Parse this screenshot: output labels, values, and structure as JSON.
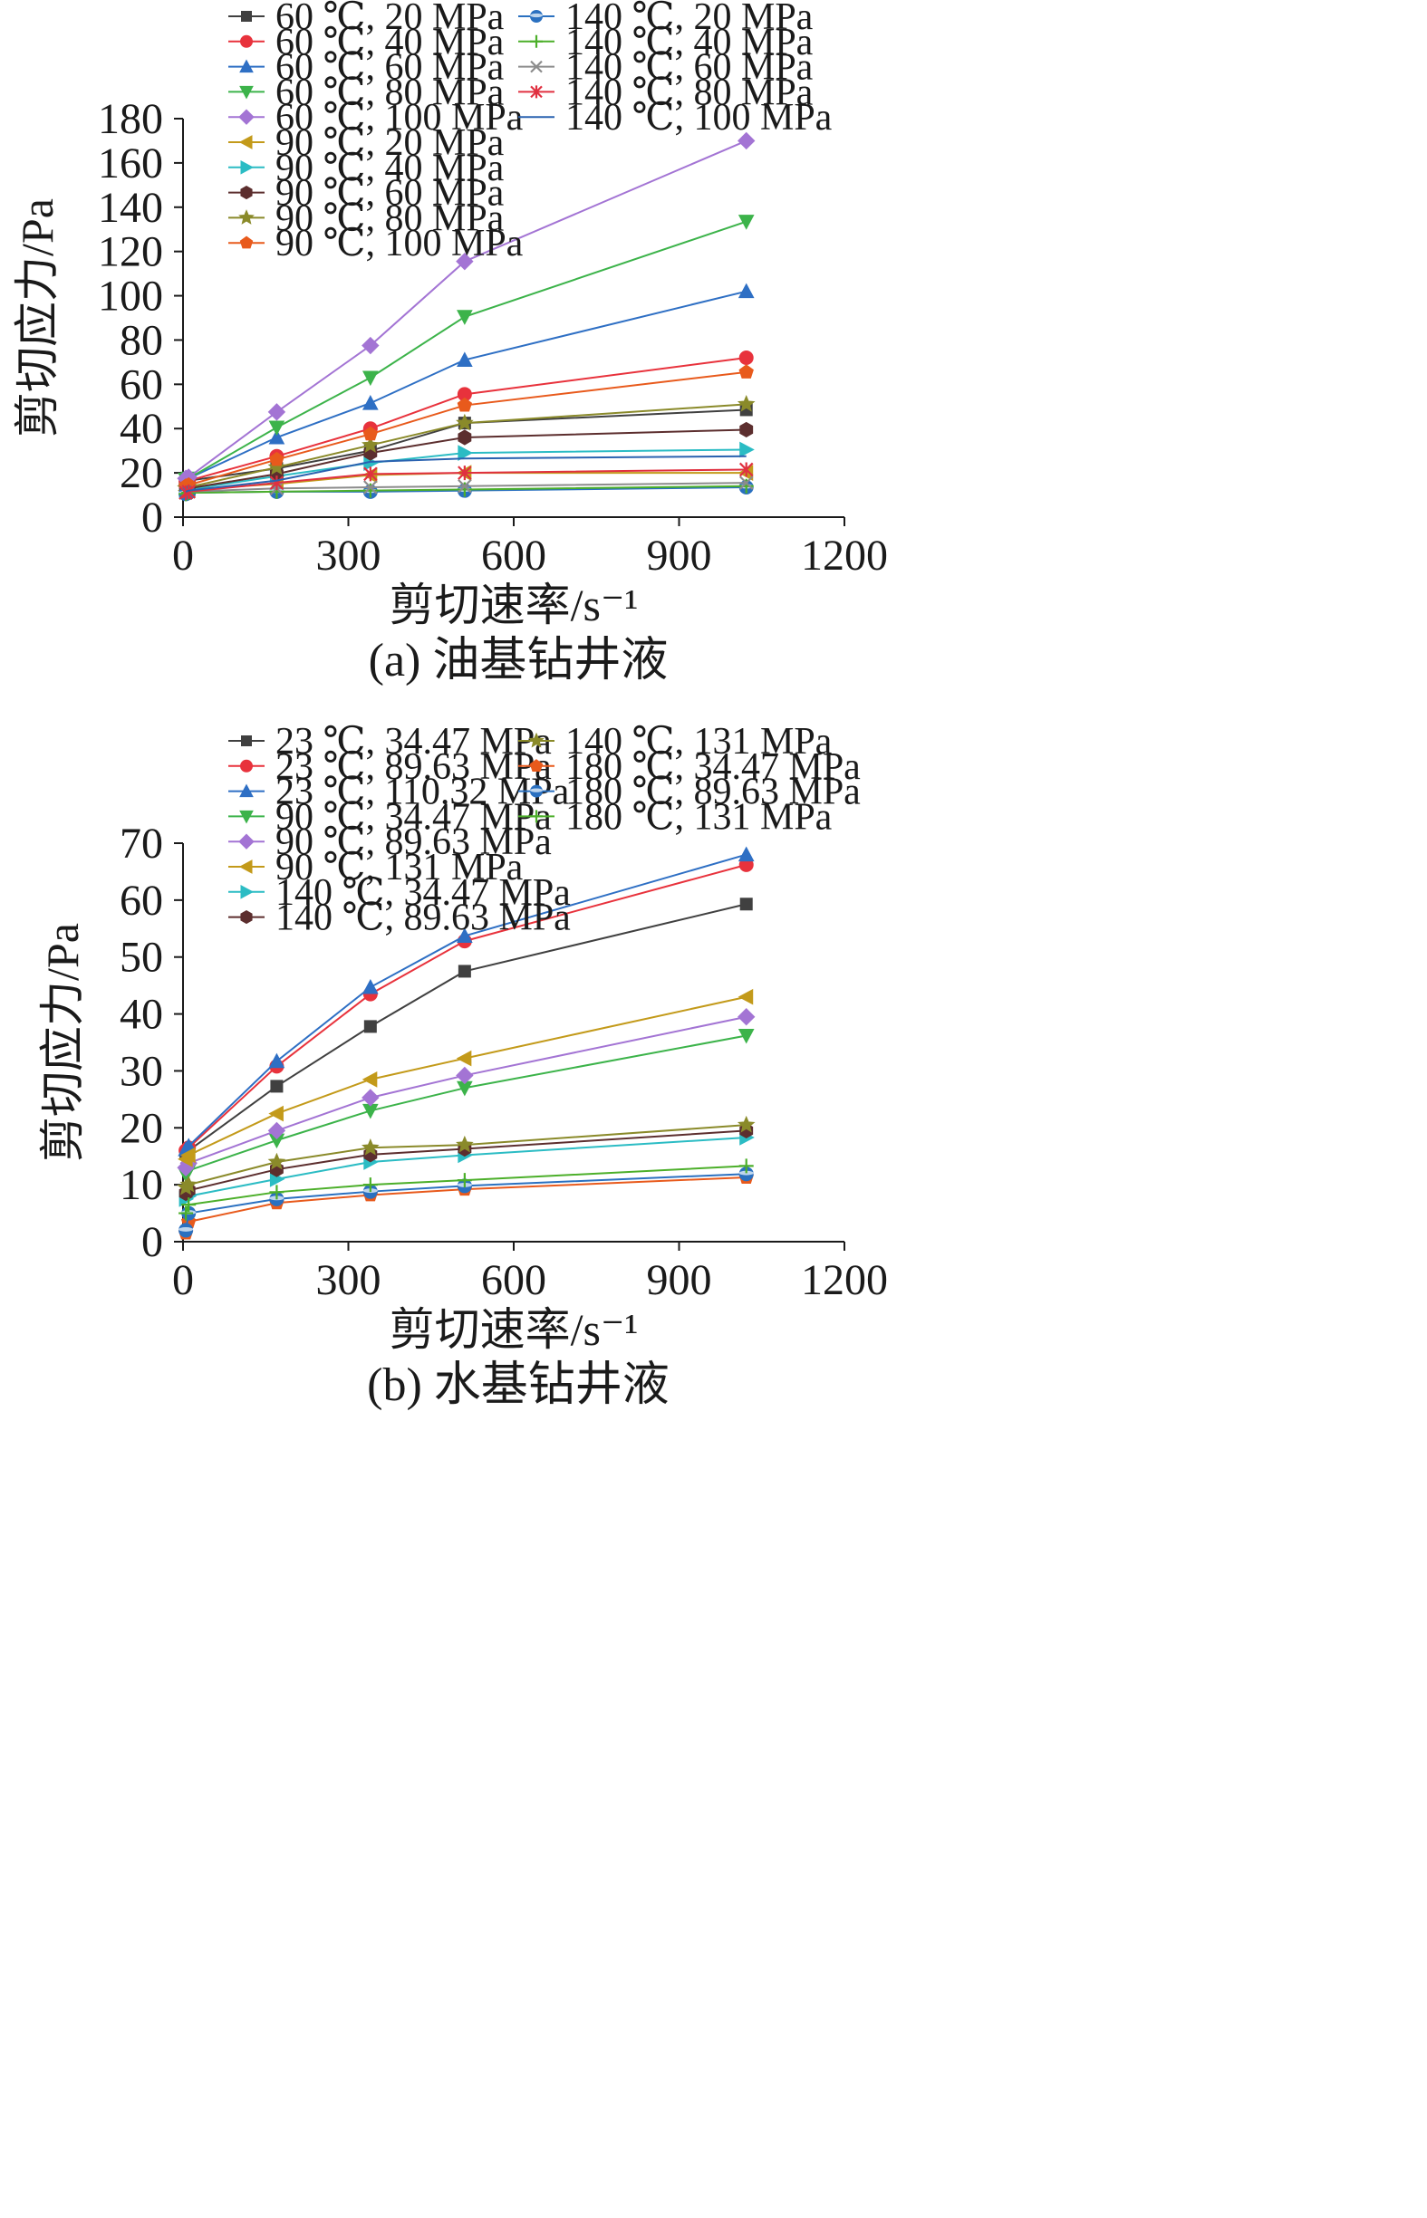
{
  "chart_data": [
    {
      "type": "line",
      "caption": "(a) 油基钻井液",
      "xlabel": "剪切速率/s⁻¹",
      "ylabel": "剪切应力/Pa",
      "xlim": [
        0,
        1200
      ],
      "ylim": [
        0,
        180
      ],
      "xticks": [
        0,
        300,
        600,
        900,
        1200
      ],
      "yticks": [
        0,
        20,
        40,
        60,
        80,
        100,
        120,
        140,
        160,
        180
      ],
      "grid": false,
      "legend_position": "top, two columns",
      "x": [
        5.1,
        10.2,
        170,
        340,
        511,
        1022
      ],
      "series": [
        {
          "name": "60 ℃, 20 MPa",
          "color": "#404040",
          "marker": "square",
          "values": [
            16,
            16.5,
            22,
            30,
            42.5,
            48.5
          ]
        },
        {
          "name": "60 ℃, 40 MPa",
          "color": "#e8323c",
          "marker": "circle",
          "values": [
            16,
            16.5,
            27.5,
            40,
            55.5,
            72
          ]
        },
        {
          "name": "60 ℃, 60 MPa",
          "color": "#2e6fc4",
          "marker": "triangle-up",
          "values": [
            17,
            17.5,
            36,
            51.5,
            71,
            102
          ]
        },
        {
          "name": "60 ℃, 80 MPa",
          "color": "#3cb34a",
          "marker": "triangle-down",
          "values": [
            17,
            17.5,
            40.5,
            63,
            90.5,
            133.5
          ]
        },
        {
          "name": "60 ℃, 100 MPa",
          "color": "#a374d4",
          "marker": "diamond",
          "values": [
            17.5,
            18,
            47.5,
            77.5,
            115.5,
            170
          ]
        },
        {
          "name": "90 ℃, 20 MPa",
          "color": "#c39a1a",
          "marker": "triangle-left",
          "values": [
            12,
            12.5,
            15,
            19,
            20,
            20
          ]
        },
        {
          "name": "90 ℃, 40 MPa",
          "color": "#2bbcc4",
          "marker": "triangle-right",
          "values": [
            12,
            12.5,
            18.5,
            24.5,
            29,
            30.5
          ]
        },
        {
          "name": "90 ℃, 60 MPa",
          "color": "#5c2e2e",
          "marker": "hexagon",
          "values": [
            12.5,
            13,
            19.5,
            29,
            36,
            39.5
          ]
        },
        {
          "name": "90 ℃, 80 MPa",
          "color": "#8a8a2a",
          "marker": "star",
          "values": [
            13,
            13.5,
            22.5,
            32.5,
            42.5,
            51
          ]
        },
        {
          "name": "90 ℃, 100 MPa",
          "color": "#e85a1c",
          "marker": "pentagon",
          "values": [
            14,
            14.5,
            26,
            37.5,
            50.5,
            65.5
          ]
        },
        {
          "name": "140 ℃, 20 MPa",
          "color": "#2a70c0",
          "marker": "ball",
          "values": [
            10.5,
            11,
            11.5,
            11.5,
            12,
            13.5
          ]
        },
        {
          "name": "140 ℃, 40 MPa",
          "color": "#4caf2a",
          "marker": "plus",
          "values": [
            10.5,
            11,
            11.5,
            12,
            12.5,
            14
          ]
        },
        {
          "name": "140 ℃, 60 MPa",
          "color": "#8c8c8c",
          "marker": "x",
          "values": [
            11,
            11.5,
            13,
            13.5,
            14,
            15.5
          ]
        },
        {
          "name": "140 ℃, 80 MPa",
          "color": "#e03040",
          "marker": "asterisk",
          "values": [
            11,
            11.5,
            15.5,
            19.5,
            20,
            21.5
          ]
        },
        {
          "name": "140 ℃, 100 MPa",
          "color": "#2a62b0",
          "marker": "none",
          "values": [
            11.5,
            12,
            16.5,
            25,
            26.5,
            27.5
          ]
        }
      ]
    },
    {
      "type": "line",
      "caption": "(b) 水基钻井液",
      "xlabel": "剪切速率/s⁻¹",
      "ylabel": "剪切应力/Pa",
      "xlim": [
        0,
        1200
      ],
      "ylim": [
        0,
        70
      ],
      "xticks": [
        0,
        300,
        600,
        900,
        1200
      ],
      "yticks": [
        0,
        10,
        20,
        30,
        40,
        50,
        60,
        70
      ],
      "grid": false,
      "legend_position": "top, two columns",
      "x": [
        5.1,
        10.2,
        170,
        340,
        511,
        1022
      ],
      "series": [
        {
          "name": "23 ℃, 34.47 MPa",
          "color": "#404040",
          "marker": "square",
          "values": [
            15.5,
            16,
            27.3,
            37.8,
            47.5,
            59.3
          ]
        },
        {
          "name": "23 ℃, 89.63 MPa",
          "color": "#e8323c",
          "marker": "circle",
          "values": [
            16,
            16.5,
            30.8,
            43.5,
            52.8,
            66.2
          ]
        },
        {
          "name": "23 ℃, 110.32 MPa",
          "color": "#2e6fc4",
          "marker": "triangle-up",
          "values": [
            16.2,
            16.8,
            31.7,
            44.7,
            53.7,
            68
          ]
        },
        {
          "name": "90 ℃, 34.47 MPa",
          "color": "#3cb34a",
          "marker": "triangle-down",
          "values": [
            11.8,
            12.5,
            17.8,
            23,
            27,
            36.2
          ]
        },
        {
          "name": "90 ℃, 89.63 MPa",
          "color": "#a374d4",
          "marker": "diamond",
          "values": [
            13,
            13.8,
            19.5,
            25.3,
            29.2,
            39.5
          ]
        },
        {
          "name": "90 ℃, 131 MPa",
          "color": "#c39a1a",
          "marker": "triangle-left",
          "values": [
            14.5,
            15.2,
            22.5,
            28.5,
            32.2,
            43
          ]
        },
        {
          "name": "140 ℃, 34.47 MPa",
          "color": "#2bbcc4",
          "marker": "triangle-right",
          "values": [
            7.5,
            8,
            11,
            14,
            15.2,
            18.3
          ]
        },
        {
          "name": "140 ℃, 89.63 MPa",
          "color": "#5c2e2e",
          "marker": "hexagon",
          "values": [
            8.5,
            9,
            12.7,
            15.3,
            16.3,
            19.5
          ]
        },
        {
          "name": "140 ℃, 131 MPa",
          "color": "#8a8a2a",
          "marker": "star",
          "values": [
            9.5,
            10,
            14,
            16.5,
            17,
            20.5
          ]
        },
        {
          "name": "180 ℃, 34.47 MPa",
          "color": "#e85a1c",
          "marker": "pentagon",
          "values": [
            1.5,
            3.5,
            6.8,
            8.2,
            9.2,
            11.3
          ]
        },
        {
          "name": "180 ℃, 89.63 MPa",
          "color": "#2a70c0",
          "marker": "ball",
          "values": [
            2,
            5,
            7.5,
            8.8,
            9.8,
            11.9
          ]
        },
        {
          "name": "180 ℃, 131 MPa",
          "color": "#4caf2a",
          "marker": "plus",
          "values": [
            5,
            6.5,
            8.7,
            10,
            10.8,
            13.3
          ]
        }
      ]
    }
  ]
}
